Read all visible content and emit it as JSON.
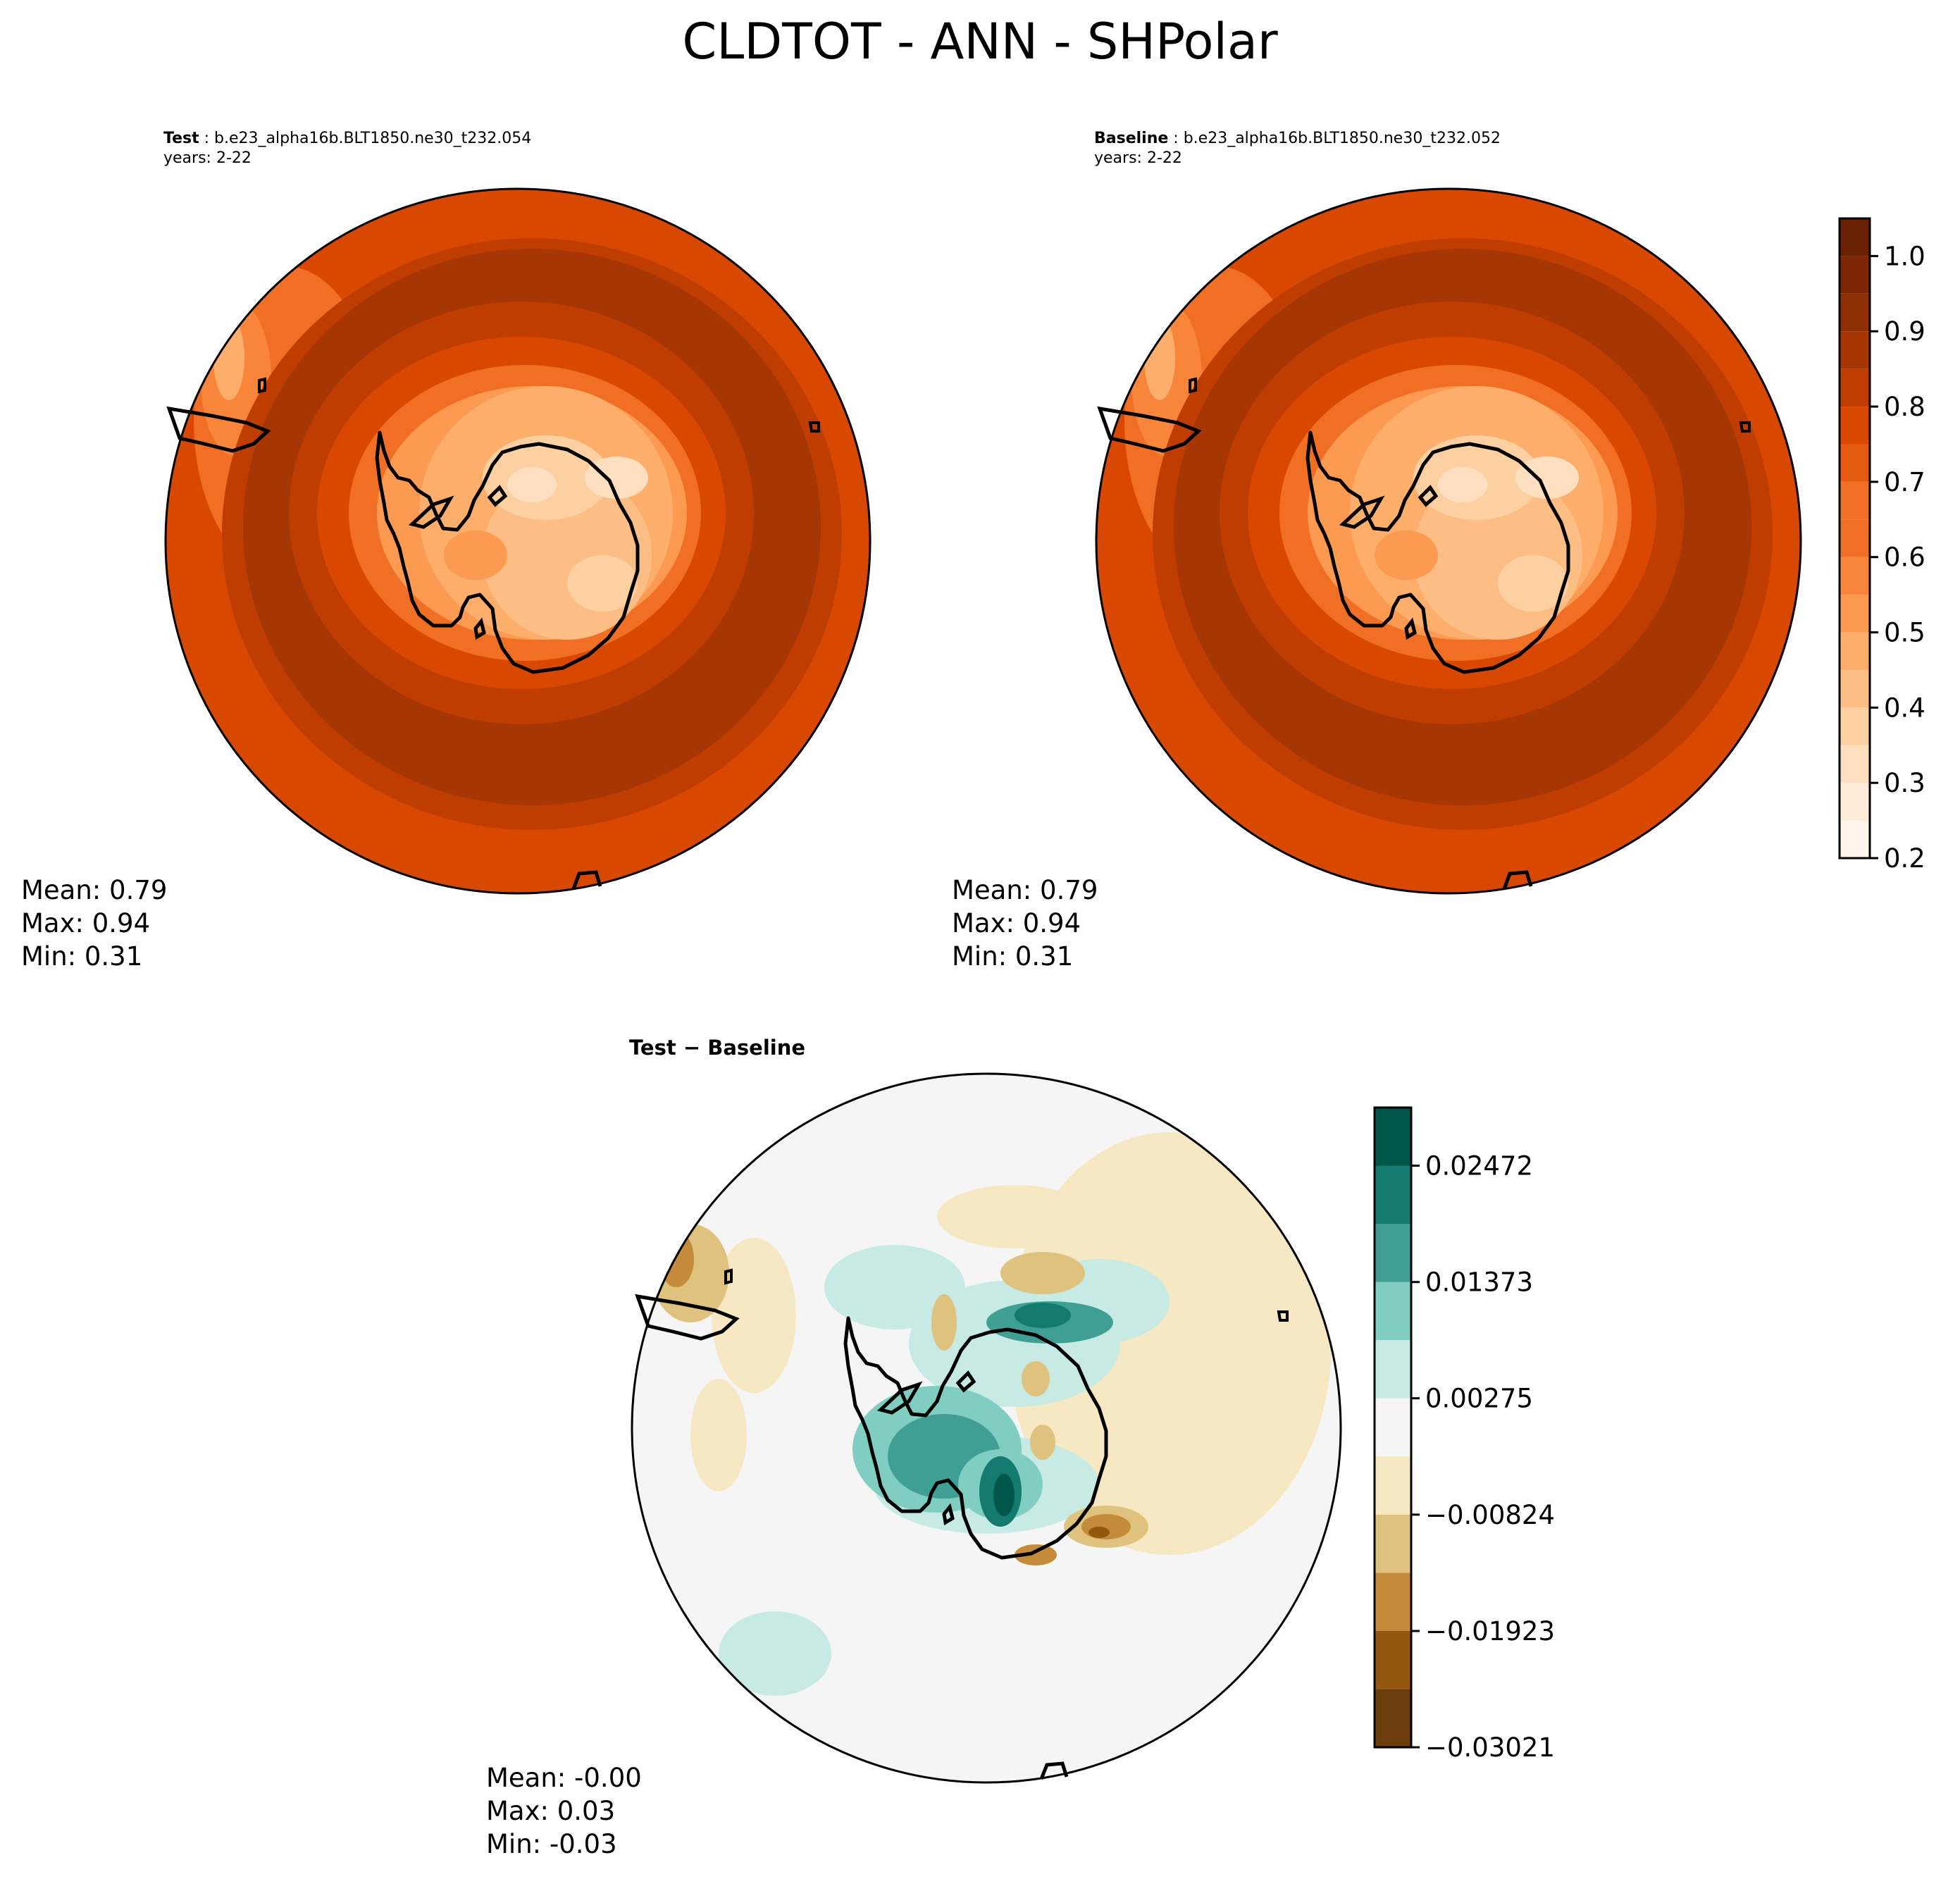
{
  "title": "CLDTOT - ANN - SHPolar",
  "panels": [
    {
      "label": "Test",
      "case_name": "b.e23_alpha16b.BLT1850.ne30_t232.054",
      "years": "years: 2-22",
      "stats": {
        "mean": "Mean:  0.79",
        "max": "Max:  0.94",
        "min": "Min:  0.31"
      }
    },
    {
      "label": "Baseline",
      "case_name": "b.e23_alpha16b.BLT1850.ne30_t232.052",
      "years": "years: 2-22",
      "stats": {
        "mean": "Mean:  0.79",
        "max": "Max:  0.94",
        "min": "Min:  0.31"
      }
    },
    {
      "label": "Test − Baseline",
      "stats": {
        "mean": "Mean: -0.00",
        "max": "Max:  0.03",
        "min": "Min: -0.03"
      }
    }
  ],
  "chart_data": [
    {
      "type": "heatmap",
      "projection": "south-polar-stereographic",
      "title": "Test : b.e23_alpha16b.BLT1850.ne30_t232.054",
      "variable": "CLDTOT",
      "stats": {
        "mean": 0.79,
        "max": 0.94,
        "min": 0.31
      },
      "colormap": "Oranges",
      "colorbar_levels": [
        0.2,
        0.25,
        0.3,
        0.35,
        0.4,
        0.45,
        0.5,
        0.55,
        0.6,
        0.65,
        0.7,
        0.75,
        0.8,
        0.85,
        0.9,
        0.95,
        1.0,
        1.05
      ],
      "colorbar_ticks": [
        0.2,
        0.3,
        0.4,
        0.5,
        0.6,
        0.7,
        0.8,
        0.9,
        1.0
      ],
      "colorbar_tick_labels": [
        "0.2",
        "0.3",
        "0.4",
        "0.5",
        "0.6",
        "0.7",
        "0.8",
        "0.9",
        "1.0"
      ]
    },
    {
      "type": "heatmap",
      "projection": "south-polar-stereographic",
      "title": "Baseline : b.e23_alpha16b.BLT1850.ne30_t232.052",
      "variable": "CLDTOT",
      "stats": {
        "mean": 0.79,
        "max": 0.94,
        "min": 0.31
      },
      "colormap": "Oranges",
      "shares_colorbar_with": 0
    },
    {
      "type": "heatmap",
      "projection": "south-polar-stereographic",
      "title": "Test − Baseline",
      "stats": {
        "mean": -0.0,
        "max": 0.03,
        "min": -0.03
      },
      "colormap": "BrBG",
      "colorbar_levels": [
        -0.03021,
        -0.0247,
        -0.01923,
        -0.01373,
        -0.00824,
        -0.00274,
        0.00275,
        0.00824,
        0.01373,
        0.01923,
        0.02472,
        0.03021
      ],
      "colorbar_ticks": [
        -0.03021,
        -0.01923,
        -0.00824,
        0.00275,
        0.01373,
        0.02472
      ],
      "colorbar_tick_labels": [
        "−0.03021",
        "−0.01923",
        "−0.00824",
        "0.00275",
        "0.01373",
        "0.02472"
      ]
    }
  ],
  "colors": {
    "oranges": [
      "#fff5eb",
      "#feebd8",
      "#fee0c1",
      "#fdd0a2",
      "#fdbe85",
      "#fdae6b",
      "#fd9a51",
      "#f8853a",
      "#f16f24",
      "#e55a11",
      "#d94801",
      "#c03d02",
      "#a63603",
      "#8f3004",
      "#7f2704",
      "#6a2003"
    ],
    "brbg": [
      "#6a3d0a",
      "#94570e",
      "#c48c3a",
      "#dfc27d",
      "#f6e8c3",
      "#f4f5f4",
      "#c7eae5",
      "#80cdc1",
      "#3f9f94",
      "#137a70",
      "#01564c"
    ],
    "coastline": "#000000"
  }
}
